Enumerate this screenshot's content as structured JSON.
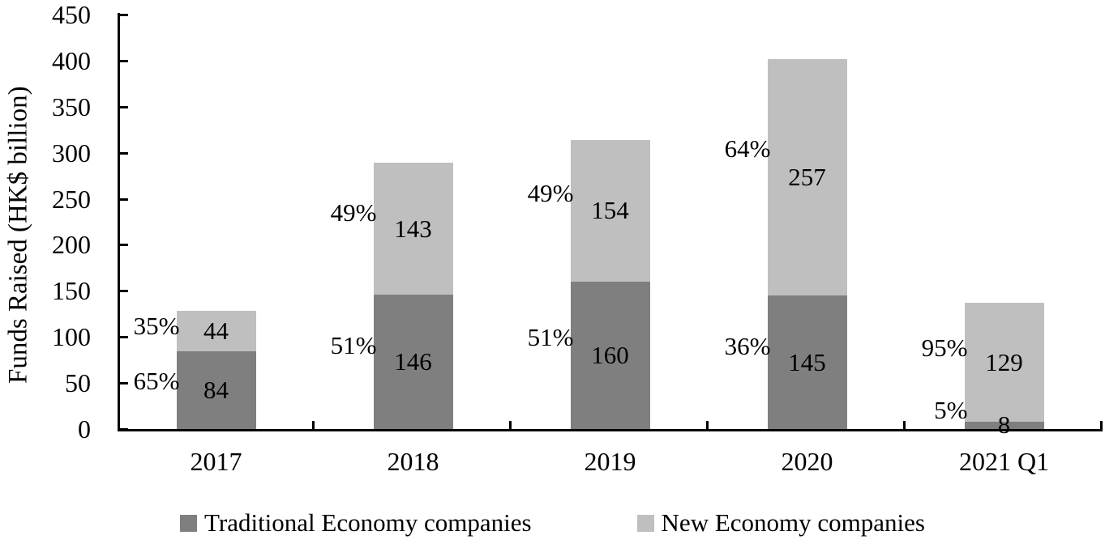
{
  "chart_data": {
    "type": "bar",
    "variant": "stacked-column",
    "title": "",
    "xlabel": "",
    "ylabel": "Funds Raised (HK$ billion)",
    "ylim": [
      0,
      450
    ],
    "ytick_step": 50,
    "ytick_labels": [
      "0",
      "50",
      "100",
      "150",
      "200",
      "250",
      "300",
      "350",
      "400",
      "450"
    ],
    "categories": [
      "2017",
      "2018",
      "2019",
      "2020",
      "2021 Q1"
    ],
    "series": [
      {
        "name": "Traditional Economy companies",
        "color": "#7f7f7f",
        "values": [
          84,
          146,
          160,
          145,
          8
        ],
        "percent_labels": [
          "65%",
          "51%",
          "51%",
          "36%",
          "5%"
        ]
      },
      {
        "name": "New Economy companies",
        "color": "#bfbfbf",
        "values": [
          44,
          143,
          154,
          257,
          129
        ],
        "percent_labels": [
          "35%",
          "49%",
          "49%",
          "64%",
          "95%"
        ]
      }
    ],
    "legend_position": "bottom",
    "grid": false,
    "axis_color": "#000000",
    "background_color": "#ffffff"
  }
}
